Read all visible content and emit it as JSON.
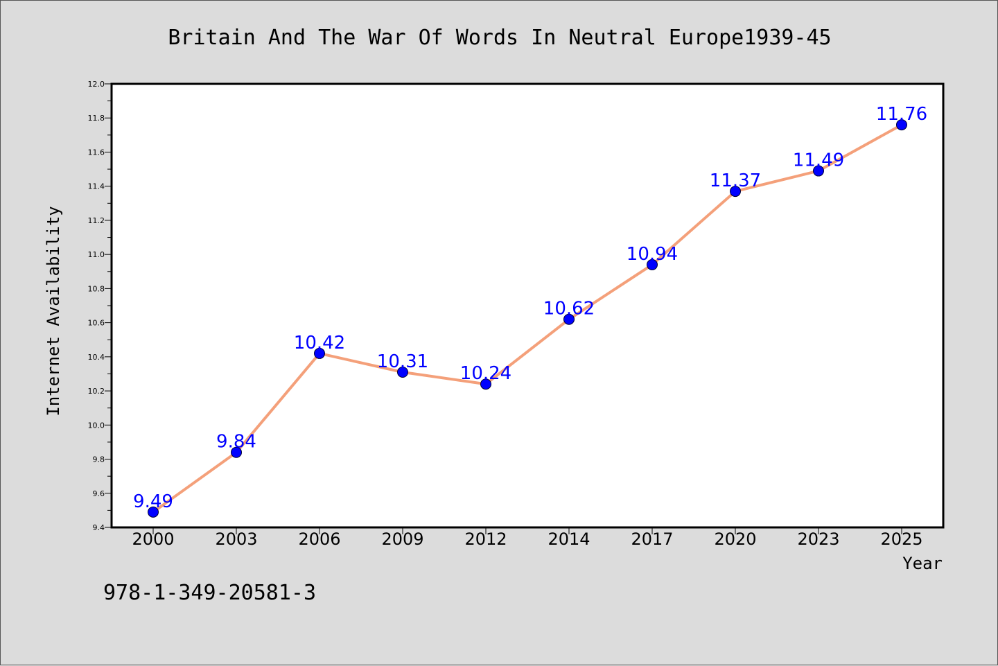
{
  "chart_data": {
    "type": "line",
    "title": "Britain And The War Of Words In Neutral Europe1939-45",
    "xlabel": "Year",
    "ylabel": "Internet Availability",
    "categories": [
      "2000",
      "2003",
      "2006",
      "2009",
      "2012",
      "2014",
      "2017",
      "2020",
      "2023",
      "2025"
    ],
    "values": [
      9.49,
      9.84,
      10.42,
      10.31,
      10.24,
      10.62,
      10.94,
      11.37,
      11.49,
      11.76
    ],
    "data_labels": [
      "9.49",
      "9.84",
      "10.42",
      "10.31",
      "10.24",
      "10.62",
      "10.94",
      "11.37",
      "11.49",
      "11.76"
    ],
    "ylim": [
      9.4,
      12.0
    ],
    "yticks": [
      "9.4",
      "9.6",
      "9.8",
      "10.0",
      "10.2",
      "10.4",
      "10.6",
      "10.8",
      "11.0",
      "11.2",
      "11.4",
      "11.6",
      "11.8",
      "12.0"
    ],
    "grid": false,
    "legend": "none",
    "colors": {
      "line": "#f4a07a",
      "marker": "#0000ff",
      "label": "#0000ff",
      "plot_background": "#ffffff",
      "page_background": "#dcdcdc"
    }
  },
  "footer": {
    "isbn": "978-1-349-20581-3"
  }
}
